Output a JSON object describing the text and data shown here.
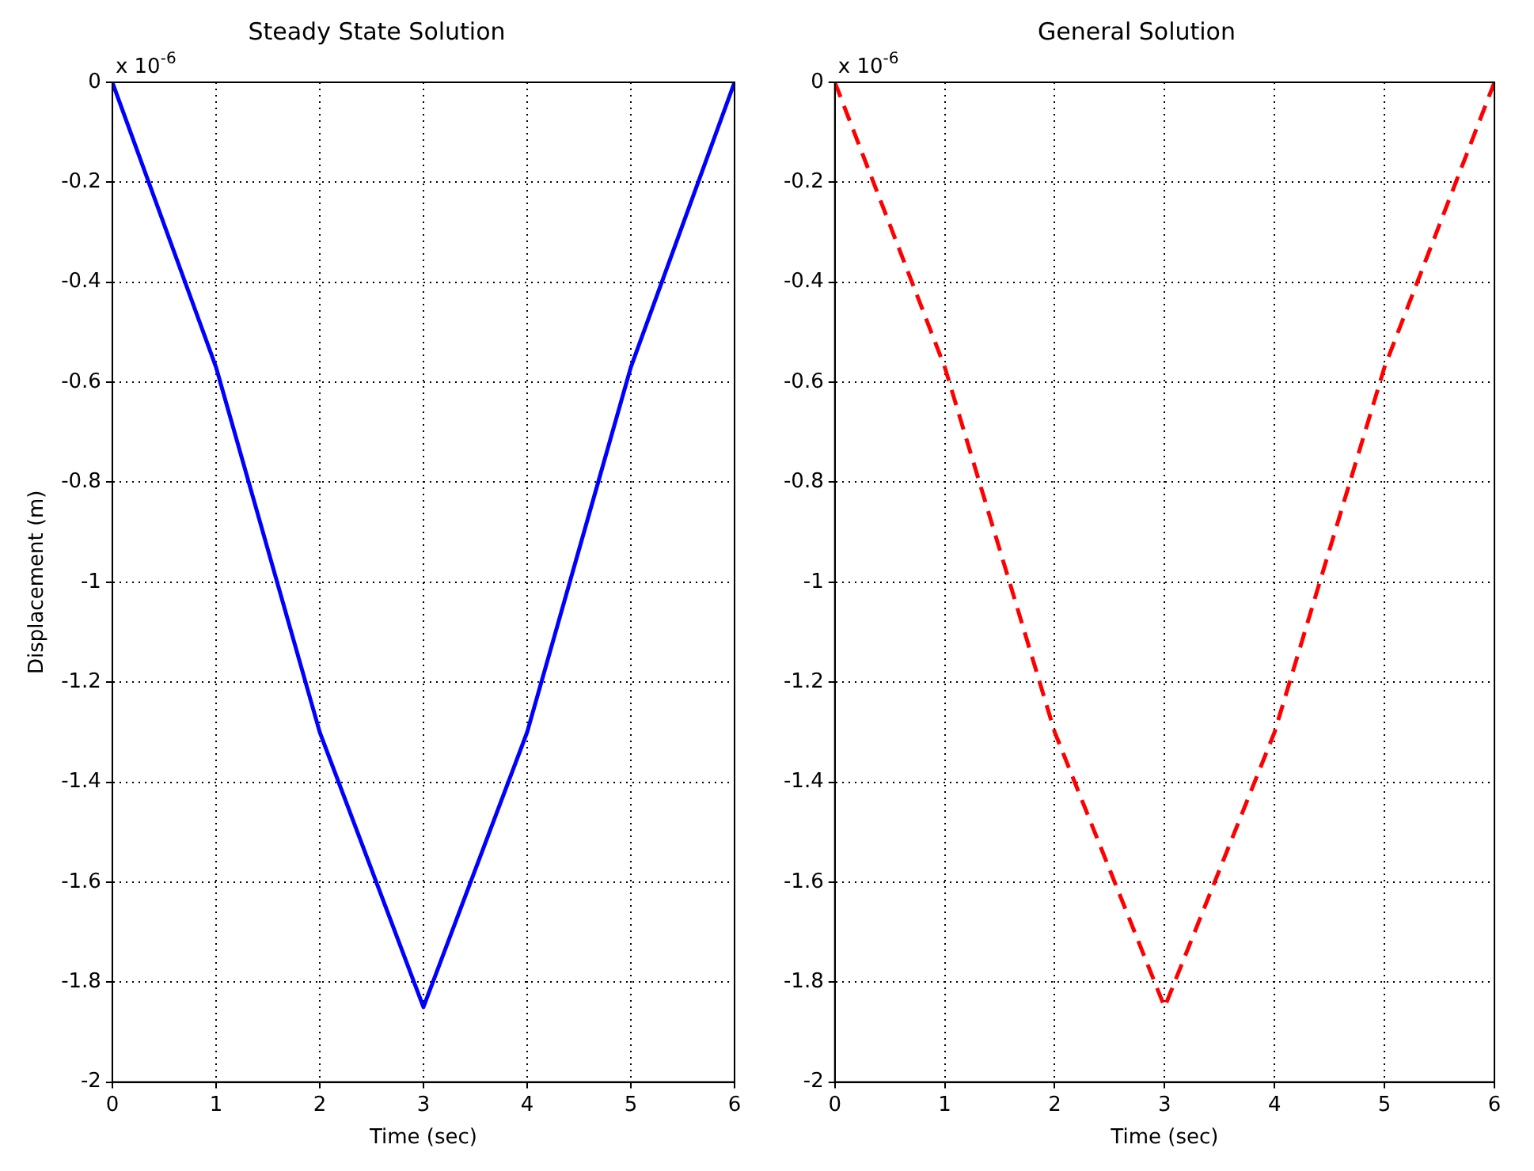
{
  "chart_data": [
    {
      "type": "line",
      "title": "Steady State Solution",
      "xlabel": "Time (sec)",
      "ylabel": "Displacement (m)",
      "annotations": [
        "x 10$^{-6}$"
      ],
      "x": [
        0,
        1,
        2,
        3,
        4,
        5,
        6
      ],
      "series": [
        {
          "color": "#0000ff",
          "values": [
            0,
            -0.57,
            -1.3,
            -1.85,
            -1.3,
            -0.57,
            0
          ],
          "line_style": "solid"
        }
      ],
      "xlim": [
        0,
        6
      ],
      "xticks": [
        0,
        1,
        2,
        3,
        4,
        5,
        6
      ],
      "ylim": [
        -2,
        0
      ],
      "yticks": [
        -2,
        -1.8,
        -1.6,
        -1.4,
        -1.2,
        -1,
        -0.8,
        -0.6,
        -0.4,
        -0.2,
        0
      ],
      "grid": true,
      "marker": "none",
      "legend": false
    },
    {
      "type": "line",
      "title": "General Solution",
      "xlabel": "Time (sec)",
      "annotations": [
        "x 10$^{-6}$"
      ],
      "x": [
        0,
        1,
        2,
        3,
        4,
        5,
        6
      ],
      "series": [
        {
          "color": "#ff0000",
          "values": [
            0,
            -0.57,
            -1.3,
            -1.85,
            -1.3,
            -0.57,
            0
          ],
          "line_style": "dashed"
        }
      ],
      "xlim": [
        0,
        6
      ],
      "xticks": [
        0,
        1,
        2,
        3,
        4,
        5,
        6
      ],
      "ylim": [
        -2,
        0
      ],
      "yticks": [
        -2,
        -1.8,
        -1.6,
        -1.4,
        -1.2,
        -1,
        -0.8,
        -0.6,
        -0.4,
        -0.2,
        0
      ],
      "grid": true,
      "marker": "none",
      "legend": false
    }
  ]
}
